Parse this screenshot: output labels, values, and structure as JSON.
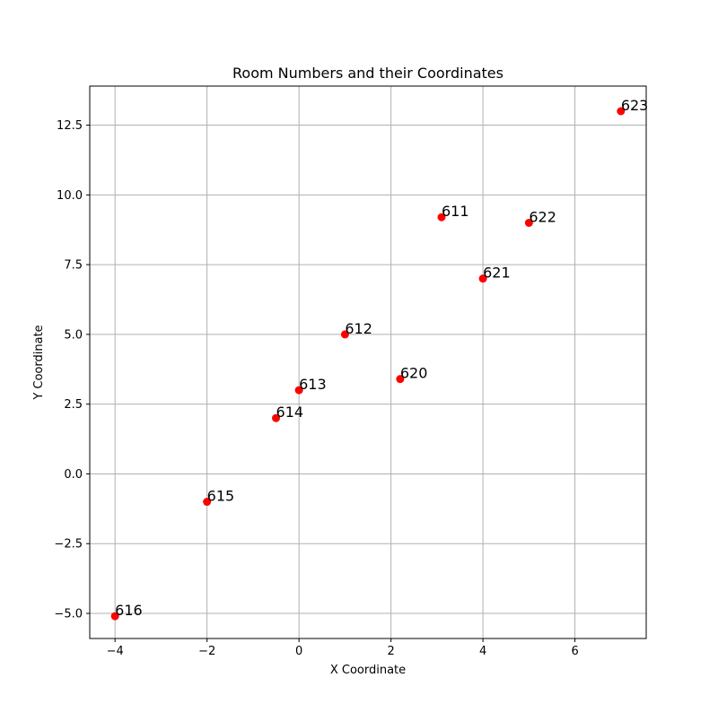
{
  "chart_data": {
    "type": "scatter",
    "title": "Room Numbers and their Coordinates",
    "xlabel": "X Coordinate",
    "ylabel": "Y Coordinate",
    "xlim": [
      -4.55,
      7.55
    ],
    "ylim": [
      -5.9,
      13.9
    ],
    "x_ticks": [
      -4,
      -2,
      0,
      2,
      4,
      6
    ],
    "x_tick_labels": [
      "−4",
      "−2",
      "0",
      "2",
      "4",
      "6"
    ],
    "y_ticks": [
      -5.0,
      -2.5,
      0.0,
      2.5,
      5.0,
      7.5,
      10.0,
      12.5
    ],
    "y_tick_labels": [
      "−5.0",
      "−2.5",
      "0.0",
      "2.5",
      "5.0",
      "7.5",
      "10.0",
      "12.5"
    ],
    "grid": true,
    "marker_color": "#ff0000",
    "points": [
      {
        "label": "611",
        "x": 3.1,
        "y": 9.2
      },
      {
        "label": "612",
        "x": 1.0,
        "y": 5.0
      },
      {
        "label": "613",
        "x": 0.0,
        "y": 3.0
      },
      {
        "label": "614",
        "x": -0.5,
        "y": 2.0
      },
      {
        "label": "615",
        "x": -2.0,
        "y": -1.0
      },
      {
        "label": "616",
        "x": -4.0,
        "y": -5.1
      },
      {
        "label": "620",
        "x": 2.2,
        "y": 3.4
      },
      {
        "label": "621",
        "x": 4.0,
        "y": 7.0
      },
      {
        "label": "622",
        "x": 5.0,
        "y": 9.0
      },
      {
        "label": "623",
        "x": 7.0,
        "y": 13.0
      }
    ]
  }
}
